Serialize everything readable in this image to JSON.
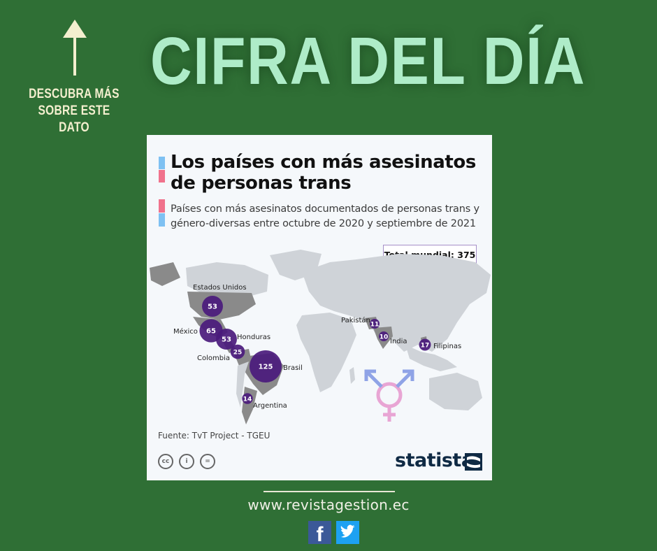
{
  "header": {
    "cta_line1": "DESCUBRA MÁS",
    "cta_line2": "SOBRE ESTE DATO",
    "headline": "CIFRA DEL DÍA"
  },
  "chart_data": {
    "type": "map-bubble",
    "title_line1": "Los países con más asesinatos",
    "title_line2": "de personas trans",
    "subtitle_line1": "Países con más asesinatos documentados de personas trans y",
    "subtitle_line2": "género-diversas entre octubre de 2020 y septiembre de 2021",
    "total_label": "Total mundial: 375",
    "series": [
      {
        "country": "Estados Unidos",
        "value": 53
      },
      {
        "country": "México",
        "value": 65
      },
      {
        "country": "Honduras",
        "value": 53
      },
      {
        "country": "Colombia",
        "value": 25
      },
      {
        "country": "Brasil",
        "value": 125
      },
      {
        "country": "Argentina",
        "value": 14
      },
      {
        "country": "Pakistán",
        "value": 11
      },
      {
        "country": "India",
        "value": 10
      },
      {
        "country": "Filipinas",
        "value": 17
      }
    ],
    "source": "Fuente: TvT Project - TGEU",
    "brand": "statista",
    "colors": {
      "bubble": "#4a1a7c",
      "highlight_land": "#8a8a8a",
      "land": "#cfd3d8",
      "blue": "#7ec1f2",
      "pink": "#f0728c"
    }
  },
  "footer": {
    "url": "www.revistagestion.ec",
    "facebook": "f"
  }
}
